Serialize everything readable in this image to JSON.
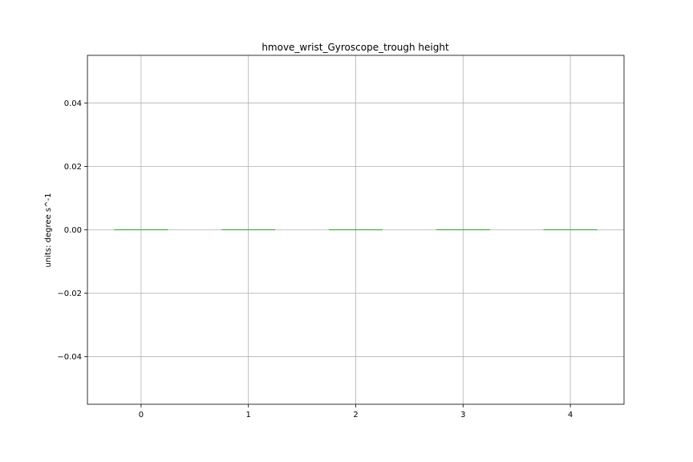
{
  "chart_data": {
    "type": "box",
    "title": "hmove_wrist_Gyroscope_trough height",
    "xlabel": "",
    "ylabel": "units: degree s^-1",
    "categories": [
      "0",
      "1",
      "2",
      "3",
      "4"
    ],
    "values": [
      0,
      0,
      0,
      0,
      0
    ],
    "xlim": [
      -0.5,
      4.5
    ],
    "ylim": [
      -0.055,
      0.055
    ],
    "yticks": [
      -0.04,
      -0.02,
      0.0,
      0.02,
      0.04
    ],
    "ytick_labels": [
      "−0.04",
      "−0.02",
      "0.00",
      "0.02",
      "0.04"
    ],
    "grid": true,
    "median_color": "#2ca02c",
    "box_color": "#1f77b4"
  }
}
